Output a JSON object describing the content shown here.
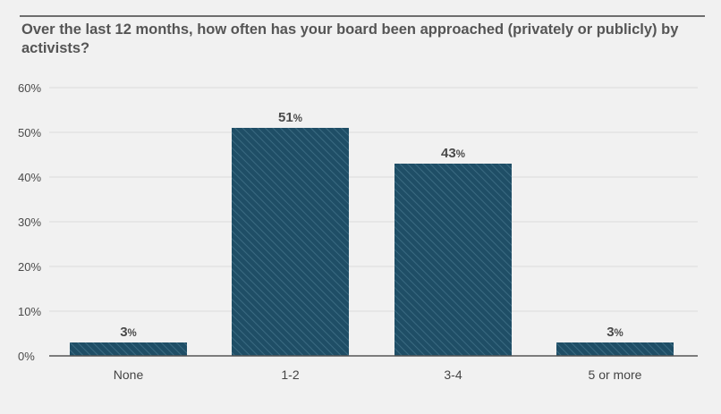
{
  "chart_data": {
    "type": "bar",
    "title": "Over the last 12 months, how often has your board been approached (privately or publicly) by activists?",
    "categories": [
      "None",
      "1-2",
      "3-4",
      "5 or more"
    ],
    "values": [
      3,
      51,
      43,
      3
    ],
    "data_labels": [
      "3",
      "51",
      "43",
      "3"
    ],
    "value_unit": "%",
    "y_ticks": [
      "0%",
      "10%",
      "20%",
      "30%",
      "40%",
      "50%",
      "60%"
    ],
    "ylim": [
      0,
      60
    ],
    "grid": true,
    "legend": "none",
    "colors": {
      "bar": "#1f4e66",
      "bar_hatch": "#3b6b82",
      "text": "#4a4a4a",
      "grid": "#dcdcdc",
      "axis": "#555555"
    }
  }
}
